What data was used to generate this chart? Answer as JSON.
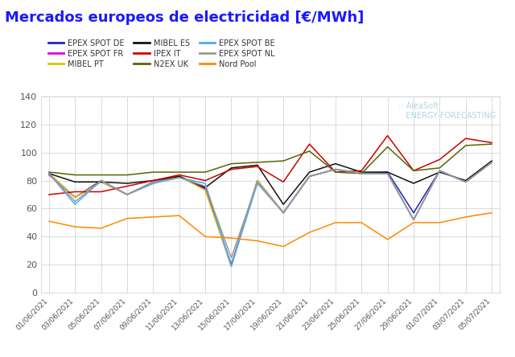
{
  "title": "Mercados europeos de electricidad [€/MWh]",
  "title_color": "#1a1aff",
  "background_color": "#ffffff",
  "grid_color": "#cccccc",
  "dates": [
    "01/06/2021",
    "03/06/2021",
    "05/06/2021",
    "07/06/2021",
    "09/06/2021",
    "11/06/2021",
    "13/06/2021",
    "15/06/2021",
    "17/06/2021",
    "19/06/2021",
    "21/06/2021",
    "23/06/2021",
    "25/06/2021",
    "27/06/2021",
    "29/06/2021",
    "01/07/2021",
    "03/07/2021",
    "05/07/2021"
  ],
  "series": {
    "EPEX SPOT DE": {
      "color": "#2222bb",
      "data": [
        85,
        68,
        80,
        70,
        79,
        83,
        75,
        20,
        80,
        57,
        83,
        88,
        85,
        86,
        57,
        87,
        79,
        93
      ]
    },
    "EPEX SPOT FR": {
      "color": "#dd00dd",
      "data": [
        84,
        68,
        79,
        70,
        78,
        83,
        74,
        19,
        80,
        57,
        83,
        88,
        85,
        85,
        52,
        87,
        79,
        93
      ]
    },
    "MIBEL PT": {
      "color": "#cccc00",
      "data": [
        85,
        68,
        79,
        70,
        78,
        83,
        73,
        19,
        80,
        57,
        83,
        88,
        85,
        85,
        52,
        87,
        79,
        93
      ]
    },
    "MIBEL ES": {
      "color": "#111111",
      "data": [
        85,
        79,
        79,
        78,
        80,
        83,
        75,
        89,
        91,
        63,
        86,
        92,
        86,
        86,
        78,
        86,
        80,
        94
      ]
    },
    "IPEX IT": {
      "color": "#cc0000",
      "data": [
        70,
        72,
        72,
        76,
        80,
        84,
        80,
        88,
        90,
        79,
        106,
        86,
        87,
        112,
        87,
        95,
        110,
        107
      ]
    },
    "N2EX UK": {
      "color": "#556600",
      "data": [
        86,
        84,
        84,
        84,
        86,
        86,
        86,
        92,
        93,
        94,
        101,
        86,
        85,
        104,
        87,
        89,
        105,
        106
      ]
    },
    "EPEX SPOT BE": {
      "color": "#44aaff",
      "data": [
        85,
        63,
        80,
        70,
        78,
        82,
        78,
        19,
        78,
        57,
        83,
        88,
        85,
        85,
        52,
        87,
        79,
        93
      ]
    },
    "EPEX SPOT NL": {
      "color": "#999999",
      "data": [
        85,
        65,
        80,
        70,
        79,
        82,
        76,
        25,
        79,
        57,
        83,
        88,
        85,
        85,
        52,
        87,
        79,
        93
      ]
    },
    "Nord Pool": {
      "color": "#ff8800",
      "data": [
        51,
        47,
        46,
        53,
        54,
        55,
        40,
        39,
        37,
        33,
        43,
        50,
        50,
        38,
        50,
        50,
        54,
        57
      ]
    }
  },
  "ylim": [
    0,
    140
  ],
  "yticks": [
    0,
    20,
    40,
    60,
    80,
    100,
    120,
    140
  ],
  "legend_order": [
    "EPEX SPOT DE",
    "EPEX SPOT FR",
    "MIBEL PT",
    "MIBEL ES",
    "IPEX IT",
    "N2EX UK",
    "EPEX SPOT BE",
    "EPEX SPOT NL",
    "Nord Pool"
  ],
  "watermark_text": ":: AleaSoft\n   ENERGY FORECASTING",
  "watermark_color": "#aaccdd"
}
